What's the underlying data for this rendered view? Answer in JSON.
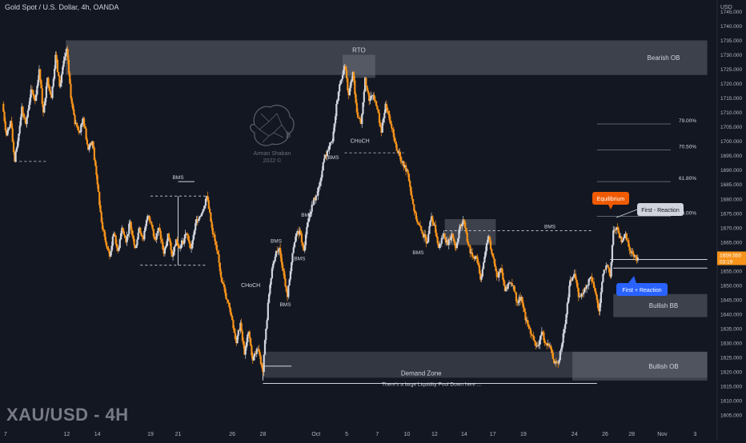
{
  "header": {
    "title": "Gold Spot / U.S. Dollar, 4h, OANDA"
  },
  "watermark": {
    "text": "XAU/USD - 4H",
    "logo_line1": "Arman Shaban",
    "logo_line2": "2022 ©"
  },
  "colors": {
    "background": "#131722",
    "bull": "#d1d4dc",
    "bear": "#f7931a",
    "axis_text": "#b2b5be",
    "zone": "#787b86",
    "badge_orange": "#f05a00",
    "badge_blue": "#2962ff",
    "price_tag": "#f7931a"
  },
  "chart_data": {
    "type": "candlestick",
    "symbol": "XAU/USD",
    "timeframe": "4h",
    "currency": "USD",
    "ylim": [
      1602,
      1749
    ],
    "y_ticks": [
      1605,
      1610,
      1615,
      1620,
      1625,
      1630,
      1635,
      1640,
      1645,
      1650,
      1655,
      1660,
      1665,
      1670,
      1675,
      1680,
      1685,
      1690,
      1695,
      1700,
      1705,
      1710,
      1715,
      1720,
      1725,
      1730,
      1735,
      1740,
      1745
    ],
    "y_tick_labels": [
      "1605.000",
      "1610.000",
      "1615.000",
      "1620.000",
      "1625.000",
      "1630.000",
      "1635.000",
      "1640.000",
      "1645.000",
      "1650.000",
      "1655.000",
      "1660.000",
      "1665.000",
      "1670.000",
      "1675.000",
      "1680.000",
      "1685.000",
      "1690.000",
      "1695.000",
      "1700.000",
      "1705.000",
      "1710.000",
      "1715.000",
      "1720.000",
      "1725.000",
      "1730.000",
      "1735.000",
      "1740.000",
      "1745.000"
    ],
    "x_tick_labels": [
      "7",
      "12",
      "14",
      "19",
      "21",
      "26",
      "28",
      "Oct",
      "5",
      "7",
      "10",
      "12",
      "14",
      "17",
      "19",
      "24",
      "26",
      "28",
      "Nov",
      "3"
    ],
    "x_tick_bars": [
      3,
      63,
      93,
      145,
      172,
      225,
      255,
      307,
      337,
      367,
      396,
      423,
      452,
      480,
      510,
      560,
      590,
      616,
      646,
      678
    ],
    "last_price": {
      "value": 1659.55,
      "label": "1659.550",
      "countdown": "03:19"
    },
    "path_points": [
      [
        0,
        1713
      ],
      [
        4,
        1702
      ],
      [
        8,
        1707
      ],
      [
        12,
        1693
      ],
      [
        15,
        1700
      ],
      [
        19,
        1712
      ],
      [
        23,
        1706
      ],
      [
        28,
        1718
      ],
      [
        32,
        1714
      ],
      [
        36,
        1725
      ],
      [
        40,
        1710
      ],
      [
        44,
        1722
      ],
      [
        48,
        1715
      ],
      [
        52,
        1730
      ],
      [
        56,
        1719
      ],
      [
        60,
        1728
      ],
      [
        63,
        1732
      ],
      [
        67,
        1715
      ],
      [
        71,
        1706
      ],
      [
        75,
        1703
      ],
      [
        79,
        1708
      ],
      [
        84,
        1697
      ],
      [
        88,
        1700
      ],
      [
        93,
        1685
      ],
      [
        97,
        1672
      ],
      [
        101,
        1665
      ],
      [
        105,
        1660
      ],
      [
        109,
        1668
      ],
      [
        113,
        1662
      ],
      [
        117,
        1670
      ],
      [
        121,
        1665
      ],
      [
        125,
        1672
      ],
      [
        130,
        1663
      ],
      [
        134,
        1670
      ],
      [
        138,
        1666
      ],
      [
        142,
        1674
      ],
      [
        145,
        1672
      ],
      [
        149,
        1666
      ],
      [
        153,
        1670
      ],
      [
        158,
        1661
      ],
      [
        162,
        1668
      ],
      [
        166,
        1660
      ],
      [
        170,
        1666
      ],
      [
        174,
        1663
      ],
      [
        180,
        1668
      ],
      [
        185,
        1663
      ],
      [
        190,
        1673
      ],
      [
        195,
        1675
      ],
      [
        200,
        1681
      ],
      [
        205,
        1670
      ],
      [
        210,
        1662
      ],
      [
        215,
        1651
      ],
      [
        220,
        1645
      ],
      [
        225,
        1638
      ],
      [
        229,
        1630
      ],
      [
        233,
        1637
      ],
      [
        237,
        1626
      ],
      [
        241,
        1634
      ],
      [
        245,
        1624
      ],
      [
        250,
        1628
      ],
      [
        255,
        1620
      ],
      [
        258,
        1635
      ],
      [
        261,
        1647
      ],
      [
        264,
        1656
      ],
      [
        268,
        1662
      ],
      [
        271,
        1663
      ],
      [
        275,
        1655
      ],
      [
        279,
        1646
      ],
      [
        283,
        1658
      ],
      [
        287,
        1667
      ],
      [
        291,
        1669
      ],
      [
        295,
        1662
      ],
      [
        299,
        1672
      ],
      [
        303,
        1678
      ],
      [
        307,
        1681
      ],
      [
        311,
        1686
      ],
      [
        315,
        1694
      ],
      [
        319,
        1697
      ],
      [
        323,
        1700
      ],
      [
        327,
        1713
      ],
      [
        331,
        1721
      ],
      [
        335,
        1726
      ],
      [
        339,
        1716
      ],
      [
        343,
        1724
      ],
      [
        347,
        1710
      ],
      [
        351,
        1706
      ],
      [
        355,
        1722
      ],
      [
        359,
        1714
      ],
      [
        363,
        1716
      ],
      [
        367,
        1711
      ],
      [
        371,
        1703
      ],
      [
        375,
        1713
      ],
      [
        380,
        1706
      ],
      [
        385,
        1699
      ],
      [
        390,
        1693
      ],
      [
        396,
        1690
      ],
      [
        401,
        1680
      ],
      [
        406,
        1672
      ],
      [
        411,
        1668
      ],
      [
        416,
        1665
      ],
      [
        420,
        1674
      ],
      [
        423,
        1671
      ],
      [
        427,
        1663
      ],
      [
        432,
        1668
      ],
      [
        436,
        1664
      ],
      [
        440,
        1668
      ],
      [
        444,
        1663
      ],
      [
        448,
        1671
      ],
      [
        452,
        1672
      ],
      [
        456,
        1664
      ],
      [
        460,
        1660
      ],
      [
        464,
        1660
      ],
      [
        468,
        1652
      ],
      [
        472,
        1660
      ],
      [
        476,
        1667
      ],
      [
        480,
        1660
      ],
      [
        484,
        1653
      ],
      [
        488,
        1656
      ],
      [
        492,
        1648
      ],
      [
        496,
        1651
      ],
      [
        500,
        1650
      ],
      [
        504,
        1644
      ],
      [
        508,
        1646
      ],
      [
        512,
        1638
      ],
      [
        516,
        1635
      ],
      [
        520,
        1631
      ],
      [
        524,
        1629
      ],
      [
        528,
        1634
      ],
      [
        532,
        1630
      ],
      [
        536,
        1629
      ],
      [
        540,
        1623
      ],
      [
        544,
        1623
      ],
      [
        548,
        1630
      ],
      [
        552,
        1640
      ],
      [
        556,
        1652
      ],
      [
        560,
        1654
      ],
      [
        564,
        1646
      ],
      [
        568,
        1647
      ],
      [
        572,
        1650
      ],
      [
        576,
        1653
      ],
      [
        580,
        1648
      ],
      [
        584,
        1641
      ],
      [
        588,
        1654
      ],
      [
        592,
        1657
      ],
      [
        595,
        1653
      ],
      [
        598,
        1669
      ],
      [
        602,
        1670
      ],
      [
        606,
        1665
      ],
      [
        610,
        1668
      ],
      [
        614,
        1662
      ],
      [
        618,
        1660
      ],
      [
        622,
        1659.55
      ]
    ],
    "zones": [
      {
        "name": "Bearish OB",
        "label": "Bearish OB",
        "t1": 62,
        "t2": 690,
        "top": 1735,
        "bottom": 1723
      },
      {
        "name": "RTO box",
        "label": "RTO",
        "t1": 333,
        "t2": 365,
        "top": 1730,
        "bottom": 1722
      },
      {
        "name": "Demand Zone",
        "label": "Demand Zone",
        "t1": 255,
        "t2": 690,
        "top": 1627,
        "bottom": 1618
      },
      {
        "name": "Bullish OB",
        "label": "Bullish OB",
        "t1": 558,
        "t2": 690,
        "top": 1627,
        "bottom": 1617
      },
      {
        "name": "Bullish BB",
        "label": "Bullish BB",
        "t1": 598,
        "t2": 690,
        "top": 1647,
        "bottom": 1639
      },
      {
        "name": "Reaction box",
        "label": "",
        "t1": 433,
        "t2": 483,
        "top": 1673,
        "bottom": 1664
      }
    ],
    "fib_levels": [
      {
        "label": "79.00%",
        "price": 1706
      },
      {
        "label": "70.50%",
        "price": 1697
      },
      {
        "label": "61.80%",
        "price": 1686
      },
      {
        "label": "50.00%",
        "price": 1674
      }
    ],
    "bms_labels": [
      {
        "text": "BMS",
        "t": 172,
        "price": 1686,
        "side": "above"
      },
      {
        "text": "BMS",
        "t": 298,
        "price": 1673,
        "side": "above"
      },
      {
        "text": "BMS",
        "t": 268,
        "price": 1664,
        "side": "above"
      },
      {
        "text": "BMS",
        "t": 291,
        "price": 1661,
        "side": "below"
      },
      {
        "text": "BMS",
        "t": 277,
        "price": 1645,
        "side": "below"
      },
      {
        "text": "BMS",
        "t": 324,
        "price": 1696,
        "side": "below"
      },
      {
        "text": "BMS",
        "t": 407,
        "price": 1663,
        "side": "below"
      },
      {
        "text": "BMS",
        "t": 536,
        "price": 1669,
        "side": "above"
      }
    ],
    "choch_labels": [
      {
        "text": "CHoCH",
        "t": 243,
        "price": 1650
      },
      {
        "text": "CHoCH",
        "t": 350,
        "price": 1700
      }
    ],
    "annotations": {
      "rto": "RTO",
      "equilibrium": "Equilibrium",
      "first_reaction_1": "First - Reaction",
      "first_reaction_2": "First + Reaction",
      "liquidity": "There's a large Liquidity Pool Down here ..."
    },
    "xlim": [
      0,
      695
    ],
    "grid": false,
    "legend": "none"
  }
}
